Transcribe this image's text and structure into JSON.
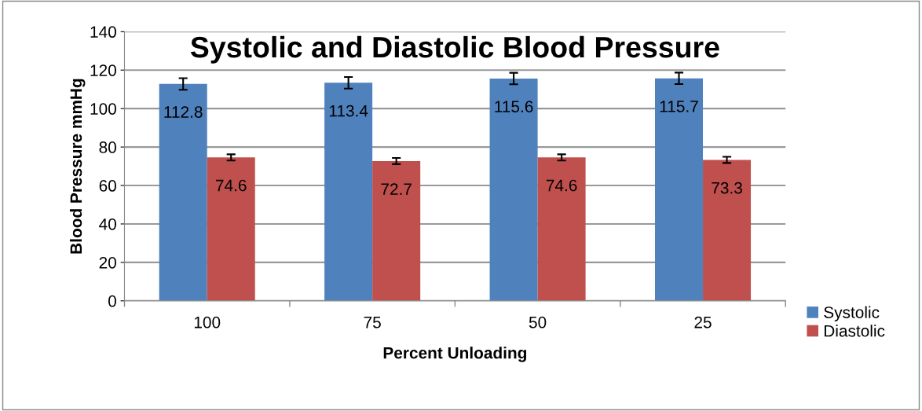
{
  "chart_data": {
    "type": "bar",
    "title": "Systolic and Diastolic Blood Pressure",
    "xlabel": "Percent Unloading",
    "ylabel": "Blood Pressure mmHg",
    "categories": [
      "100",
      "75",
      "50",
      "25"
    ],
    "series": [
      {
        "name": "Systolic",
        "color": "#4f81bd",
        "values": [
          112.8,
          113.4,
          115.6,
          115.7
        ],
        "errors": [
          3,
          3,
          3,
          3
        ]
      },
      {
        "name": "Diastolic",
        "color": "#c0504d",
        "values": [
          74.6,
          72.7,
          74.6,
          73.3
        ],
        "errors": [
          1.6,
          1.6,
          1.6,
          1.6
        ]
      }
    ],
    "ylim": [
      0,
      140
    ],
    "yticks": [
      0,
      20,
      40,
      60,
      80,
      100,
      120,
      140
    ],
    "grid": "y",
    "legend": "right",
    "data_labels": true
  }
}
